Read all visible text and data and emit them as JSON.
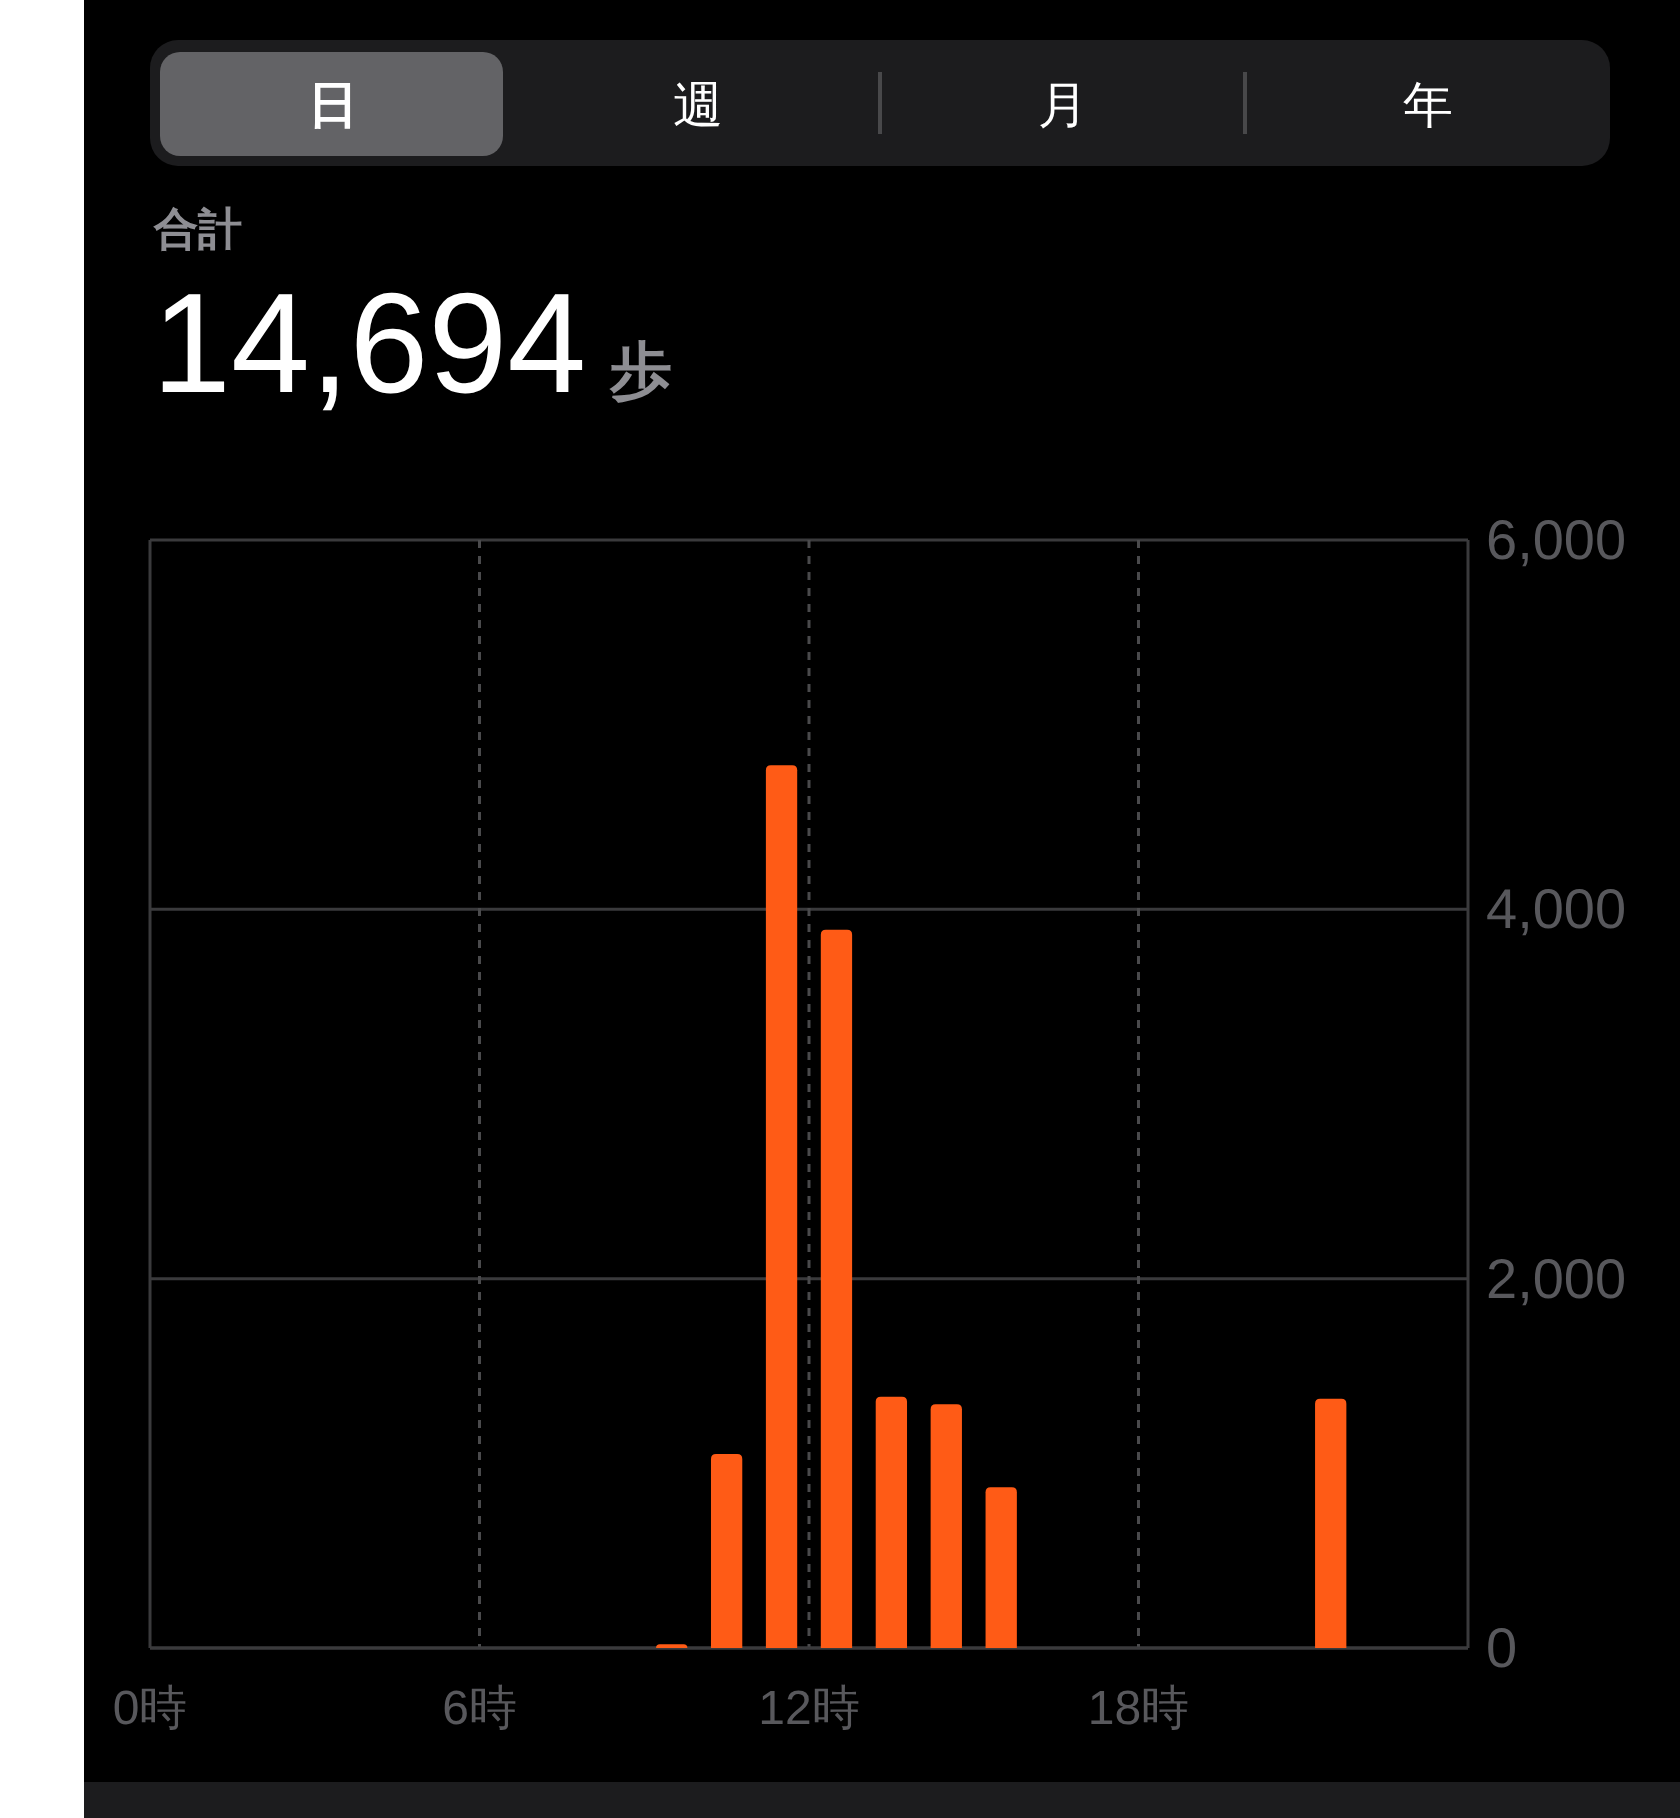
{
  "chart_data": {
    "type": "bar",
    "title": "合計",
    "subtitle": "14,694 歩",
    "annotations": [
      "日",
      "週",
      "月",
      "年"
    ],
    "x": [
      9.5,
      10.5,
      11.5,
      12.5,
      13.5,
      14.5,
      15.5,
      21.5
    ],
    "values": [
      20,
      1050,
      4780,
      3890,
      1360,
      1320,
      870,
      1350
    ],
    "color": "#ff5b16",
    "xlim": [
      0,
      24
    ],
    "xticks": [
      {
        "value": 0,
        "label": "0時"
      },
      {
        "value": 6,
        "label": "6時"
      },
      {
        "value": 12,
        "label": "12時"
      },
      {
        "value": 18,
        "label": "18時"
      }
    ],
    "ylim": [
      0,
      6000
    ],
    "yticks": [
      0,
      {
        "value": 2000,
        "label": "2,000"
      },
      {
        "value": 4000,
        "label": "4,000"
      },
      {
        "value": 6000,
        "label": "6,000"
      }
    ],
    "grid": true
  }
}
